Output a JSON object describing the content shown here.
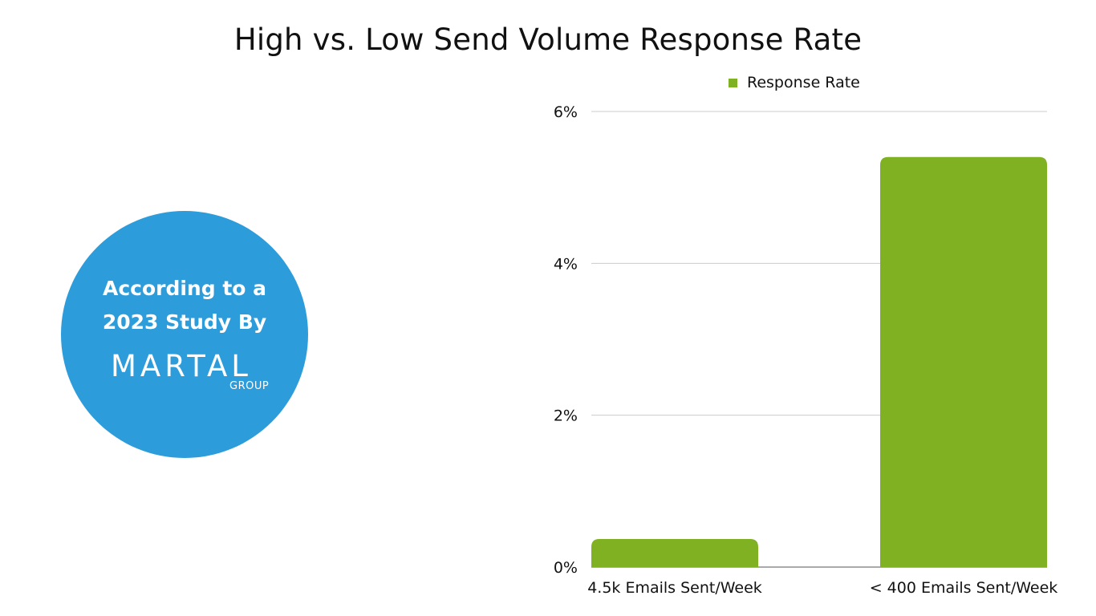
{
  "chart_data": {
    "type": "bar",
    "title": "High vs. Low Send Volume Response Rate",
    "categories": [
      "4.5k Emails Sent/Week",
      "< 400 Emails Sent/Week"
    ],
    "series": [
      {
        "name": "Response Rate",
        "values": [
          0.37,
          5.4
        ],
        "color": "#80b122"
      }
    ],
    "ylim": [
      0,
      6
    ],
    "yticks": [
      0,
      2,
      4,
      6
    ],
    "ytick_labels": [
      "0%",
      "2%",
      "4%",
      "6%"
    ],
    "xlabel": "",
    "ylabel": "",
    "grid": true,
    "legend_position": "top"
  },
  "badge": {
    "line1": "According to a",
    "line2": "2023 Study By",
    "logo_word": "MARTAL",
    "logo_sub": "GROUP",
    "color": "#2d9cdb"
  }
}
